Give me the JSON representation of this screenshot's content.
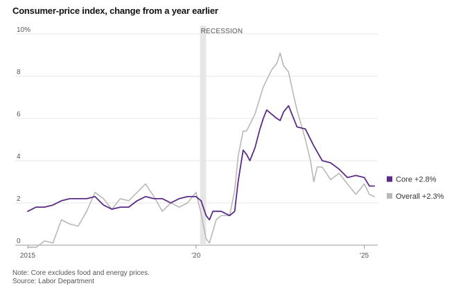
{
  "chart_data": {
    "type": "line",
    "title": "Consumer-price index, change from a year earlier",
    "ylabel": "",
    "xlabel": "",
    "y_unit_suffix": "%",
    "ylim": [
      0,
      10
    ],
    "y_ticks": [
      0,
      2,
      4,
      6,
      8,
      10
    ],
    "y_tick_labels": [
      "0",
      "2",
      "4",
      "6",
      "8",
      "10%"
    ],
    "xlim": [
      2015.0,
      2025.4
    ],
    "x_ticks": [
      2015,
      2020,
      2025
    ],
    "x_tick_labels": [
      "2015",
      "'20",
      "'25"
    ],
    "annotations": [
      {
        "label": "RECESSION",
        "x_start": 2020.12,
        "x_end": 2020.3
      }
    ],
    "legend": [
      {
        "label": "Core +2.8%",
        "color": "#5b2a86"
      },
      {
        "label": "Overall +2.3%",
        "color": "#b8b8b8"
      }
    ],
    "series": [
      {
        "name": "Core",
        "color": "#5b2a86",
        "points": [
          [
            2015.0,
            1.6
          ],
          [
            2015.25,
            1.8
          ],
          [
            2015.5,
            1.8
          ],
          [
            2015.75,
            1.9
          ],
          [
            2016.0,
            2.1
          ],
          [
            2016.25,
            2.2
          ],
          [
            2016.5,
            2.2
          ],
          [
            2016.75,
            2.2
          ],
          [
            2017.0,
            2.3
          ],
          [
            2017.25,
            1.9
          ],
          [
            2017.5,
            1.7
          ],
          [
            2017.75,
            1.8
          ],
          [
            2018.0,
            1.8
          ],
          [
            2018.25,
            2.1
          ],
          [
            2018.5,
            2.3
          ],
          [
            2018.75,
            2.2
          ],
          [
            2019.0,
            2.2
          ],
          [
            2019.25,
            2.0
          ],
          [
            2019.5,
            2.2
          ],
          [
            2019.75,
            2.3
          ],
          [
            2020.0,
            2.3
          ],
          [
            2020.15,
            2.1
          ],
          [
            2020.3,
            1.4
          ],
          [
            2020.4,
            1.2
          ],
          [
            2020.5,
            1.6
          ],
          [
            2020.75,
            1.6
          ],
          [
            2021.0,
            1.4
          ],
          [
            2021.15,
            1.6
          ],
          [
            2021.25,
            3.0
          ],
          [
            2021.4,
            4.5
          ],
          [
            2021.5,
            4.3
          ],
          [
            2021.6,
            4.0
          ],
          [
            2021.75,
            4.6
          ],
          [
            2021.9,
            5.5
          ],
          [
            2022.0,
            6.0
          ],
          [
            2022.1,
            6.4
          ],
          [
            2022.25,
            6.2
          ],
          [
            2022.4,
            6.0
          ],
          [
            2022.5,
            5.9
          ],
          [
            2022.6,
            6.3
          ],
          [
            2022.75,
            6.6
          ],
          [
            2022.9,
            6.0
          ],
          [
            2023.0,
            5.6
          ],
          [
            2023.25,
            5.5
          ],
          [
            2023.5,
            4.7
          ],
          [
            2023.75,
            4.0
          ],
          [
            2024.0,
            3.9
          ],
          [
            2024.25,
            3.6
          ],
          [
            2024.5,
            3.2
          ],
          [
            2024.75,
            3.3
          ],
          [
            2025.0,
            3.2
          ],
          [
            2025.15,
            2.8
          ],
          [
            2025.3,
            2.8
          ]
        ]
      },
      {
        "name": "Overall",
        "color": "#b8b8b8",
        "points": [
          [
            2015.0,
            -0.1
          ],
          [
            2015.25,
            -0.1
          ],
          [
            2015.5,
            0.2
          ],
          [
            2015.75,
            0.1
          ],
          [
            2016.0,
            1.2
          ],
          [
            2016.25,
            1.0
          ],
          [
            2016.5,
            0.9
          ],
          [
            2016.75,
            1.6
          ],
          [
            2017.0,
            2.5
          ],
          [
            2017.25,
            2.2
          ],
          [
            2017.5,
            1.7
          ],
          [
            2017.75,
            2.2
          ],
          [
            2018.0,
            2.1
          ],
          [
            2018.25,
            2.5
          ],
          [
            2018.5,
            2.9
          ],
          [
            2018.75,
            2.3
          ],
          [
            2019.0,
            1.6
          ],
          [
            2019.25,
            2.0
          ],
          [
            2019.5,
            1.8
          ],
          [
            2019.75,
            2.0
          ],
          [
            2020.0,
            2.5
          ],
          [
            2020.15,
            1.5
          ],
          [
            2020.3,
            0.3
          ],
          [
            2020.4,
            0.1
          ],
          [
            2020.6,
            1.2
          ],
          [
            2020.75,
            1.4
          ],
          [
            2021.0,
            1.4
          ],
          [
            2021.15,
            2.6
          ],
          [
            2021.25,
            4.2
          ],
          [
            2021.4,
            5.4
          ],
          [
            2021.5,
            5.4
          ],
          [
            2021.75,
            6.2
          ],
          [
            2022.0,
            7.5
          ],
          [
            2022.25,
            8.3
          ],
          [
            2022.4,
            8.6
          ],
          [
            2022.5,
            9.1
          ],
          [
            2022.6,
            8.5
          ],
          [
            2022.75,
            8.2
          ],
          [
            2022.9,
            7.1
          ],
          [
            2023.0,
            6.4
          ],
          [
            2023.25,
            5.0
          ],
          [
            2023.4,
            4.0
          ],
          [
            2023.5,
            3.0
          ],
          [
            2023.6,
            3.7
          ],
          [
            2023.75,
            3.7
          ],
          [
            2024.0,
            3.1
          ],
          [
            2024.25,
            3.4
          ],
          [
            2024.5,
            2.9
          ],
          [
            2024.75,
            2.4
          ],
          [
            2025.0,
            2.9
          ],
          [
            2025.15,
            2.4
          ],
          [
            2025.3,
            2.3
          ]
        ]
      }
    ],
    "note": "Note: Core excludes food and energy prices.",
    "source": "Source: Labor Department"
  }
}
